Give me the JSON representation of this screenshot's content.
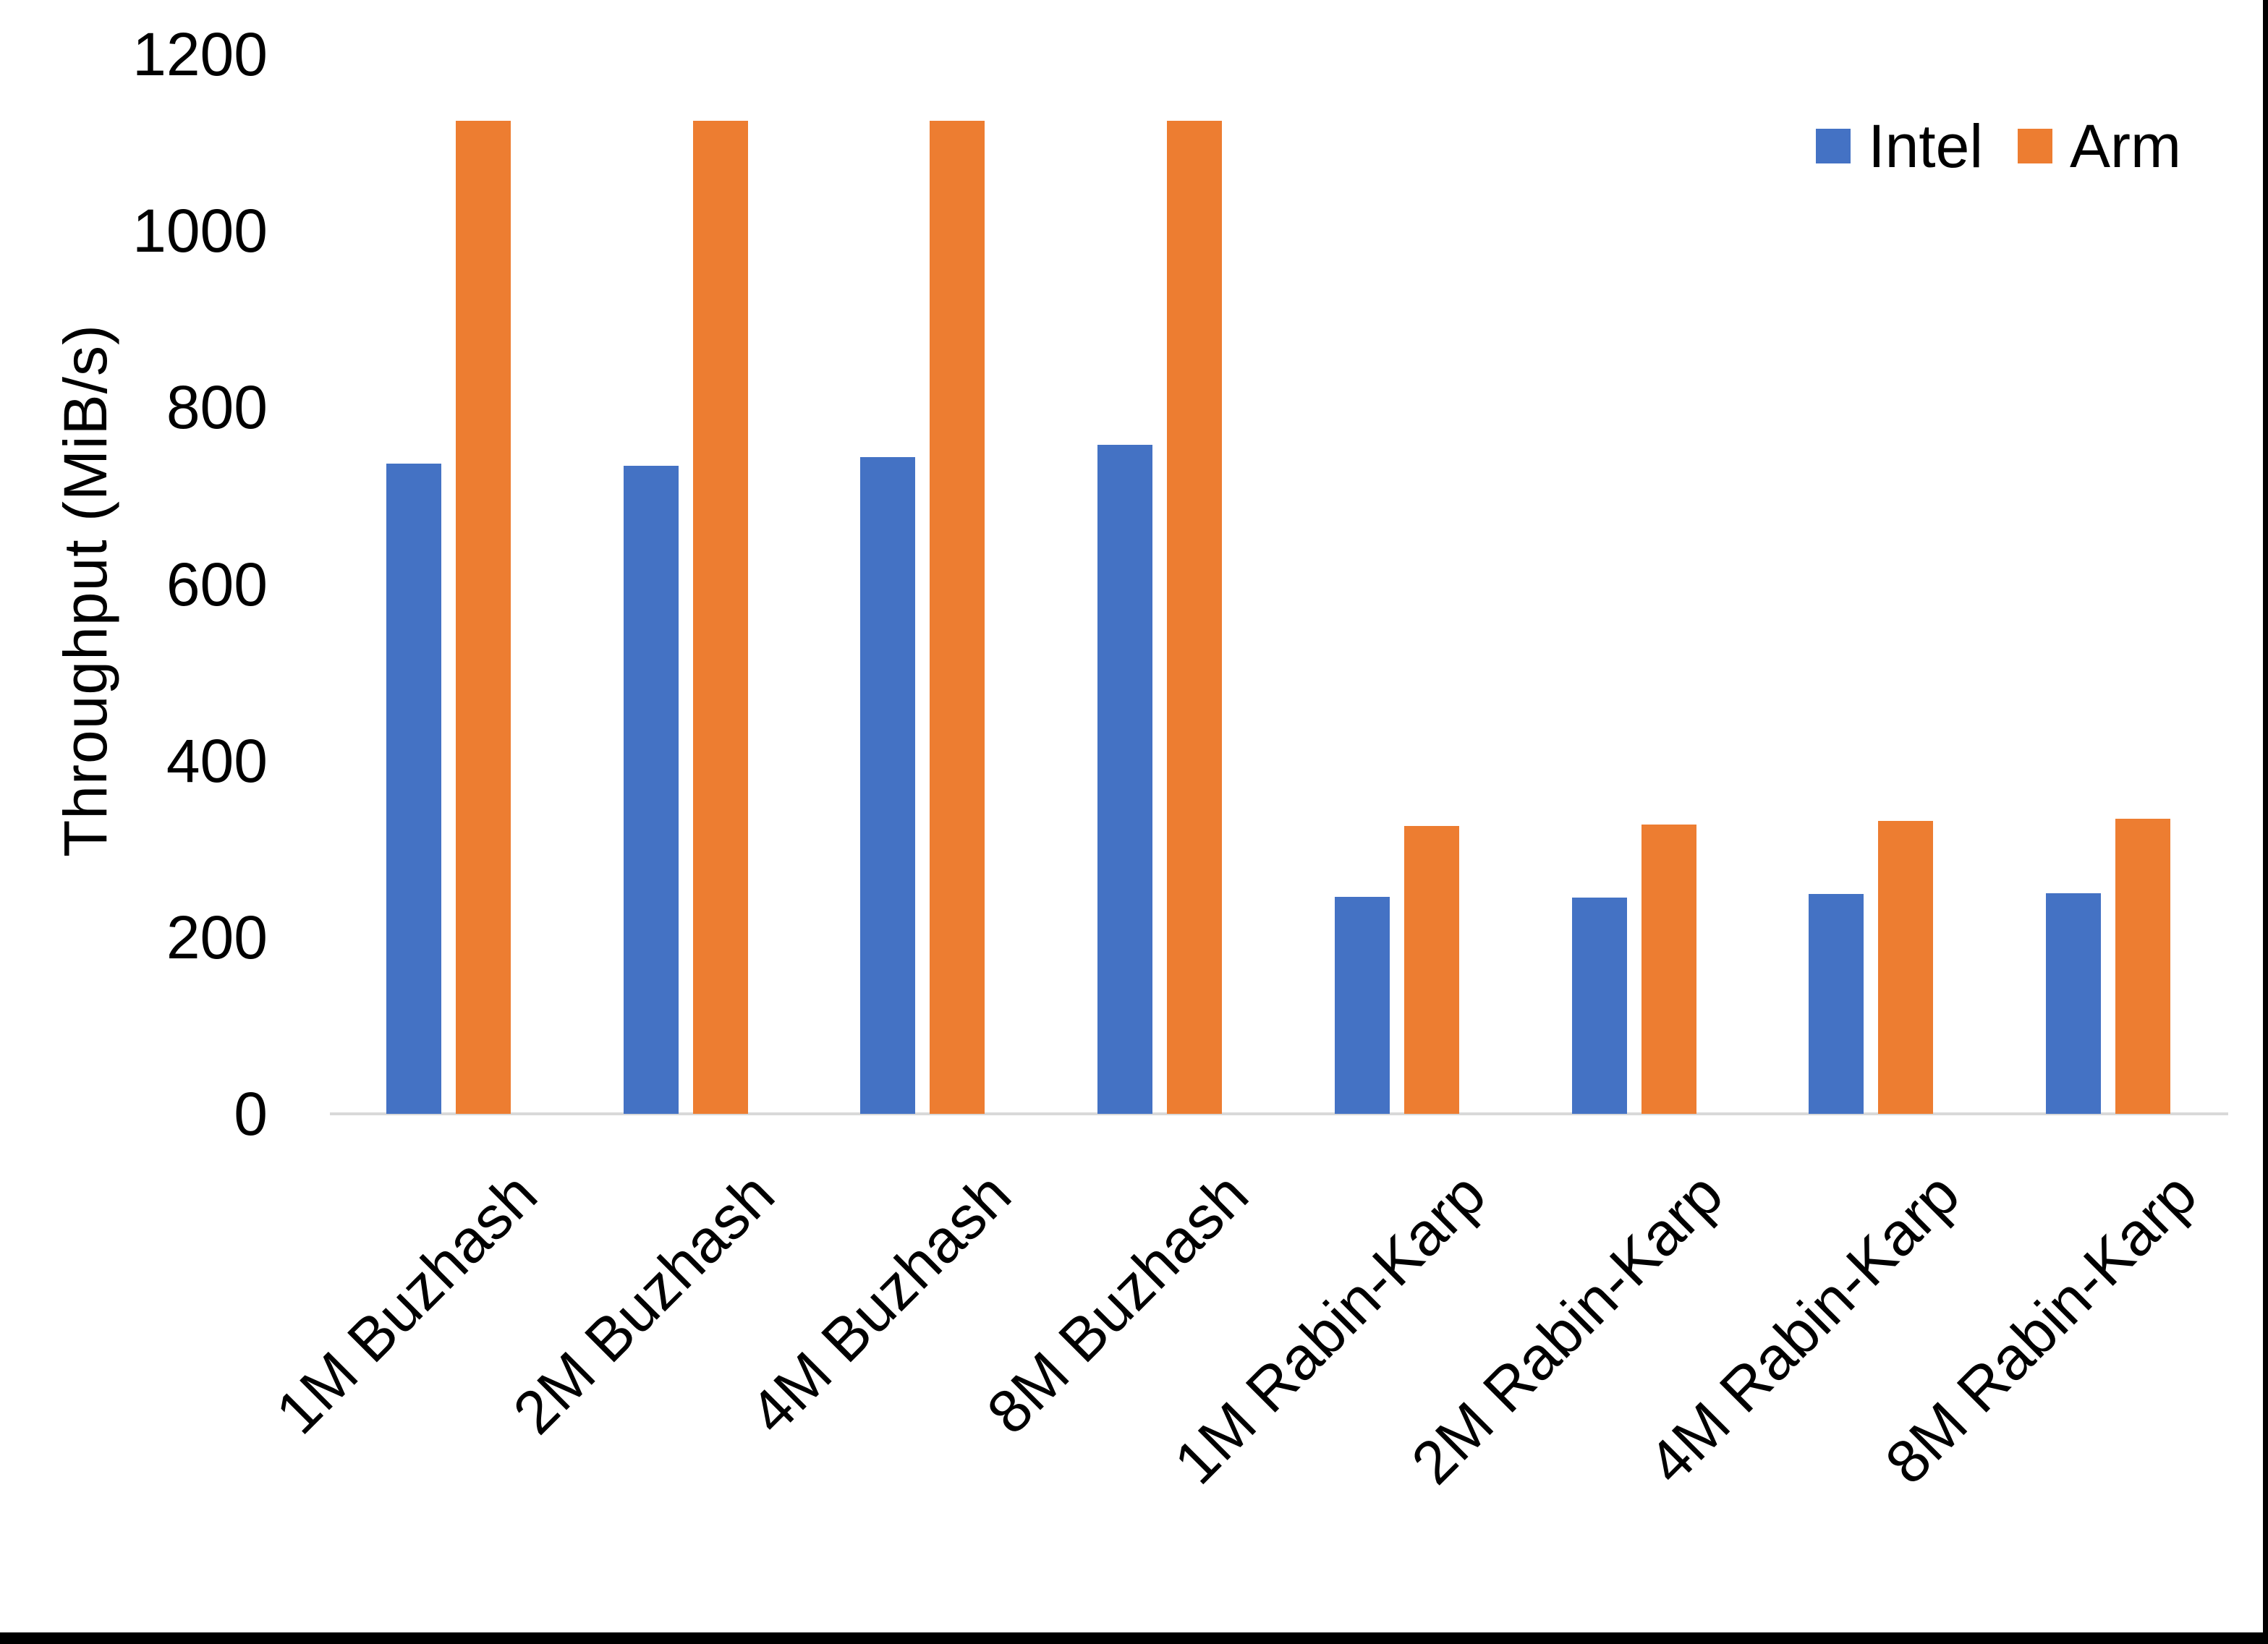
{
  "chart_data": {
    "type": "bar",
    "title": "",
    "xlabel": "",
    "ylabel": "Throughput (MiB/s)",
    "categories": [
      "1M Buzhash",
      "2M Buzhash",
      "4M Buzhash",
      "8M Buzhash",
      "1M Rabin-Karp",
      "2M Rabin-Karp",
      "4M Rabin-Karp",
      "8M Rabin-Karp"
    ],
    "series": [
      {
        "name": "Intel",
        "color": "#4472C4",
        "values": [
          736,
          734,
          744,
          758,
          246,
          245,
          249,
          250
        ]
      },
      {
        "name": "Arm",
        "color": "#ED7D31",
        "values": [
          1125,
          1125,
          1125,
          1125,
          326,
          328,
          332,
          334
        ]
      }
    ],
    "ylim": [
      0,
      1200
    ],
    "yticks": [
      0,
      200,
      400,
      600,
      800,
      1000,
      1200
    ],
    "grid": false,
    "legend_position": "top-right",
    "axis_line_color": "#d9d9d9",
    "text_color": "#000000",
    "background_color": "#ffffff"
  }
}
